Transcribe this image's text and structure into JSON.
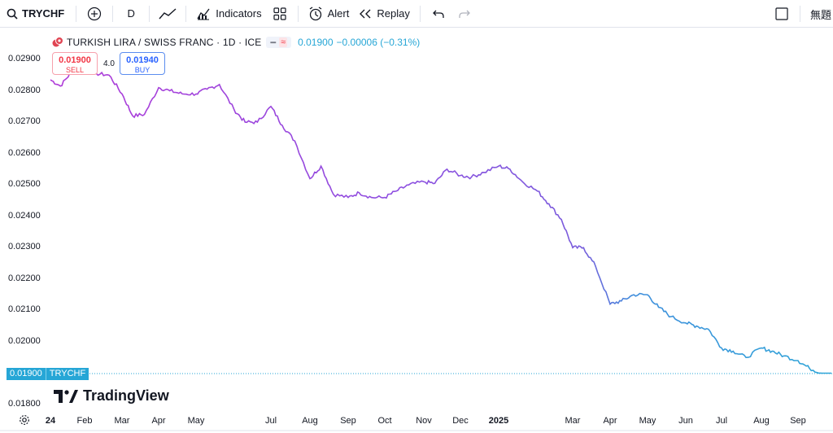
{
  "toolbar": {
    "symbol": "TRYCHF",
    "interval": "D",
    "indicators_label": "Indicators",
    "alert_label": "Alert",
    "replay_label": "Replay",
    "layout_label": "無題"
  },
  "legend": {
    "title": "TURKISH LIRA / SWISS FRANC · 1D · ICE",
    "price": "0.01900",
    "change": "−0.00006 (−0.31%)"
  },
  "trade": {
    "sell_price": "0.01900",
    "sell_label": "SELL",
    "spread": "4.0",
    "buy_price": "0.01940",
    "buy_label": "BUY"
  },
  "price_tag": {
    "value": "0.01900",
    "symbol": "TRYCHF"
  },
  "logo_text": "TradingView",
  "colors": {
    "line_start": "#b03ad8",
    "line_mid": "#8e4fe0",
    "line_end": "#2fa6d8",
    "price_line": "#26a6d6"
  },
  "chart_data": {
    "type": "line",
    "y_ticks": [
      "0.02900",
      "0.02800",
      "0.02700",
      "0.02600",
      "0.02500",
      "0.02400",
      "0.02300",
      "0.02200",
      "0.02100",
      "0.02000",
      "0.01800"
    ],
    "x_ticks": [
      "24",
      "Feb",
      "Mar",
      "Apr",
      "May",
      "Jul",
      "Aug",
      "Sep",
      "Oct",
      "Nov",
      "Dec",
      "2025",
      "Mar",
      "Apr",
      "May",
      "Jun",
      "Jul",
      "Aug",
      "Sep"
    ],
    "ylim": [
      0.0178,
      0.0293
    ],
    "series": [
      {
        "x": [
          "2024-01-01",
          "2024-01-10",
          "2024-01-20",
          "2024-02-01",
          "2024-02-10",
          "2024-02-20",
          "2024-03-01",
          "2024-03-10",
          "2024-03-20",
          "2024-04-01",
          "2024-04-10",
          "2024-04-20",
          "2024-05-01",
          "2024-05-10",
          "2024-05-20",
          "2024-06-01",
          "2024-06-10",
          "2024-06-20",
          "2024-07-01",
          "2024-07-10",
          "2024-07-20",
          "2024-08-01",
          "2024-08-10",
          "2024-08-20",
          "2024-09-01",
          "2024-09-10",
          "2024-09-20",
          "2024-10-01",
          "2024-10-10",
          "2024-10-20",
          "2024-11-01",
          "2024-11-10",
          "2024-11-20",
          "2024-12-01",
          "2024-12-10",
          "2024-12-20",
          "2025-01-01",
          "2025-01-10",
          "2025-01-20",
          "2025-02-01",
          "2025-02-10",
          "2025-02-20",
          "2025-03-01",
          "2025-03-10",
          "2025-03-20",
          "2025-04-01",
          "2025-04-10",
          "2025-04-20",
          "2025-05-01",
          "2025-05-10",
          "2025-05-20",
          "2025-06-01",
          "2025-06-10",
          "2025-06-20",
          "2025-07-01",
          "2025-07-10",
          "2025-07-20",
          "2025-08-01",
          "2025-08-10",
          "2025-08-20",
          "2025-09-01",
          "2025-09-10",
          "2025-09-20"
        ],
        "y": [
          0.02835,
          0.02815,
          0.0286,
          0.0287,
          0.02855,
          0.0285,
          0.0279,
          0.0272,
          0.02725,
          0.0281,
          0.028,
          0.0279,
          0.0279,
          0.02805,
          0.0282,
          0.0274,
          0.027,
          0.027,
          0.0275,
          0.0269,
          0.0264,
          0.0252,
          0.0256,
          0.0247,
          0.0246,
          0.02475,
          0.0246,
          0.0246,
          0.0248,
          0.025,
          0.0251,
          0.02505,
          0.0255,
          0.0253,
          0.02525,
          0.0254,
          0.0256,
          0.0255,
          0.0251,
          0.0248,
          0.0244,
          0.0239,
          0.023,
          0.023,
          0.0224,
          0.0212,
          0.0213,
          0.0215,
          0.0215,
          0.0211,
          0.0208,
          0.0206,
          0.0205,
          0.0204,
          0.0198,
          0.0197,
          0.0195,
          0.0198,
          0.0197,
          0.01955,
          0.0194,
          0.01915,
          0.019
        ]
      }
    ],
    "last_value": 0.019
  }
}
